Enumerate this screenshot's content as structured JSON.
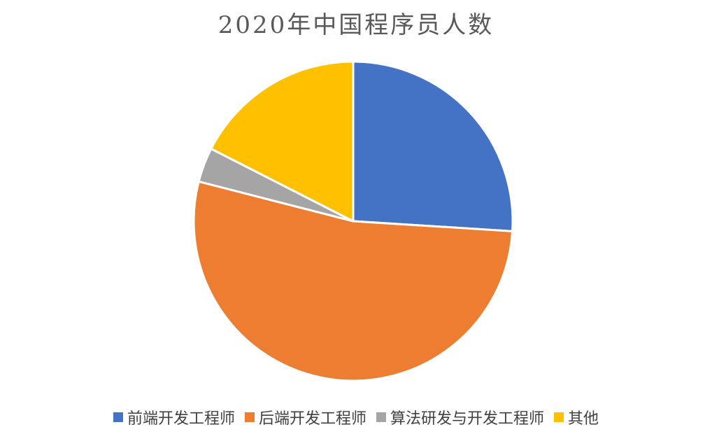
{
  "chart_data": {
    "type": "pie",
    "title": "2020年中国程序员人数",
    "categories": [
      "前端开发工程师",
      "后端开发工程师",
      "算法研发与开发工程师",
      "其他"
    ],
    "values": [
      26,
      53,
      3.5,
      17.5
    ],
    "colors": [
      "#4472C4",
      "#ED7D31",
      "#A5A5A5",
      "#FFC000"
    ],
    "legend_position": "bottom",
    "start_angle_deg": 0,
    "direction": "clockwise"
  }
}
